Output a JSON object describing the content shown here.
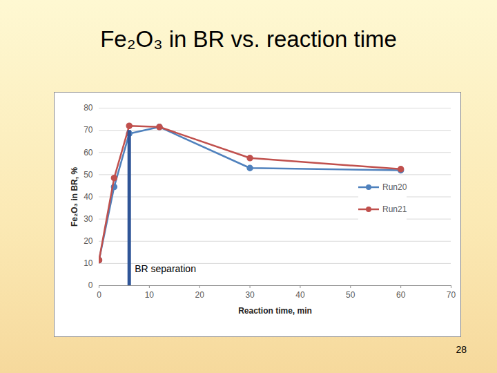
{
  "chart_data": {
    "type": "line",
    "title": "Fe₂O₃ in BR vs. reaction time",
    "x_label": "Reaction time, min",
    "y_label": "Fe₂O₃ in BR, %",
    "x": [
      0,
      3,
      6,
      12,
      30,
      60
    ],
    "series": [
      {
        "name": "Run20",
        "color": "#4f81bd",
        "values": [
          11.5,
          44.5,
          68.5,
          71.5,
          53,
          52
        ]
      },
      {
        "name": "Run21",
        "color": "#c0504d",
        "values": [
          11.5,
          48.5,
          72,
          71.5,
          57.5,
          52.5
        ]
      }
    ],
    "xlim": [
      0,
      70
    ],
    "xticks": [
      0,
      10,
      20,
      30,
      40,
      50,
      60,
      70
    ],
    "ylim": [
      0,
      80
    ],
    "yticks": [
      0,
      10,
      20,
      30,
      40,
      50,
      60,
      70,
      80
    ],
    "grid": true,
    "legend": "right",
    "marker": "circle",
    "annotations": [
      {
        "text": "BR separation",
        "x": 6,
        "y": [
          0,
          70
        ]
      }
    ],
    "page_number": 28
  }
}
